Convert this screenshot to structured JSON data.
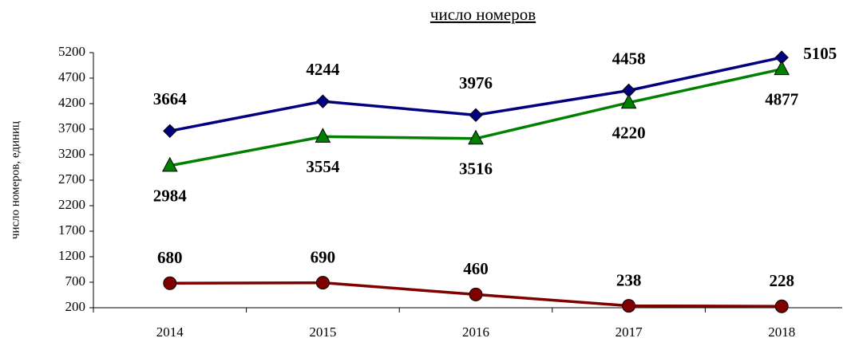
{
  "chart_data": {
    "type": "line",
    "title": "число номеров",
    "y_label": "число номеров, единиц",
    "categories": [
      "2014",
      "2015",
      "2016",
      "2017",
      "2018"
    ],
    "series": [
      {
        "color": "#000080",
        "marker": "diamond",
        "values": [
          3664,
          4244,
          3976,
          4458,
          5105
        ]
      },
      {
        "color": "#008000",
        "marker": "triangle",
        "values": [
          2984,
          3554,
          3516,
          4220,
          4877
        ]
      },
      {
        "color": "#800000",
        "marker": "circle",
        "values": [
          680,
          690,
          460,
          238,
          228
        ]
      }
    ],
    "ylim": [
      200,
      5200
    ],
    "yticks": [
      200,
      700,
      1200,
      1700,
      2200,
      2700,
      3200,
      3700,
      4200,
      4700,
      5200
    ]
  }
}
